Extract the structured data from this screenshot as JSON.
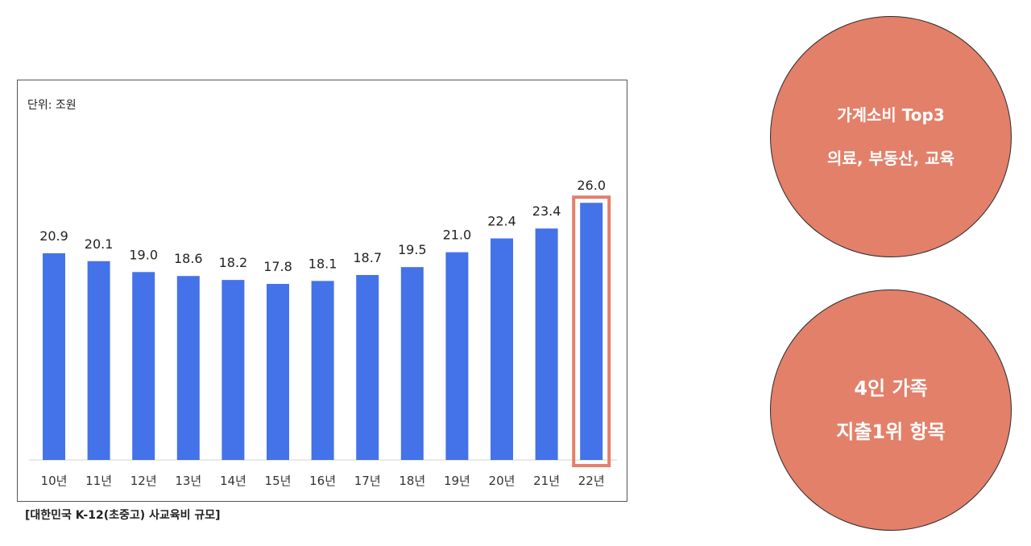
{
  "chart_data": {
    "type": "bar",
    "unit_label": "단위: 조원",
    "categories": [
      "10년",
      "11년",
      "12년",
      "13년",
      "14년",
      "15년",
      "16년",
      "17년",
      "18년",
      "19년",
      "20년",
      "21년",
      "22년"
    ],
    "values": [
      20.9,
      20.1,
      19.0,
      18.6,
      18.2,
      17.8,
      18.1,
      18.7,
      19.5,
      21.0,
      22.4,
      23.4,
      26.0
    ],
    "data_labels": [
      "20.9",
      "20.1",
      "19.0",
      "18.6",
      "18.2",
      "17.8",
      "18.1",
      "18.7",
      "19.5",
      "21.0",
      "22.4",
      "23.4",
      "26.0"
    ],
    "ylim": [
      0,
      28
    ],
    "highlight_index": 12,
    "grid": false,
    "colors": {
      "bar": "#4472e8",
      "highlight_box": "#e3806a",
      "axis": "#d0d0d0"
    }
  },
  "caption": "[대한민국 K-12(초중고) 사교육비 규모]",
  "bubbles": [
    {
      "line1": "가계소비 Top3",
      "line2": "의료, 부동산, 교육"
    },
    {
      "line1": "4인 가족",
      "line2": "지출1위 항목"
    }
  ],
  "colors": {
    "bubble_fill": "#e3806a",
    "bubble_text": "#ffffff"
  }
}
